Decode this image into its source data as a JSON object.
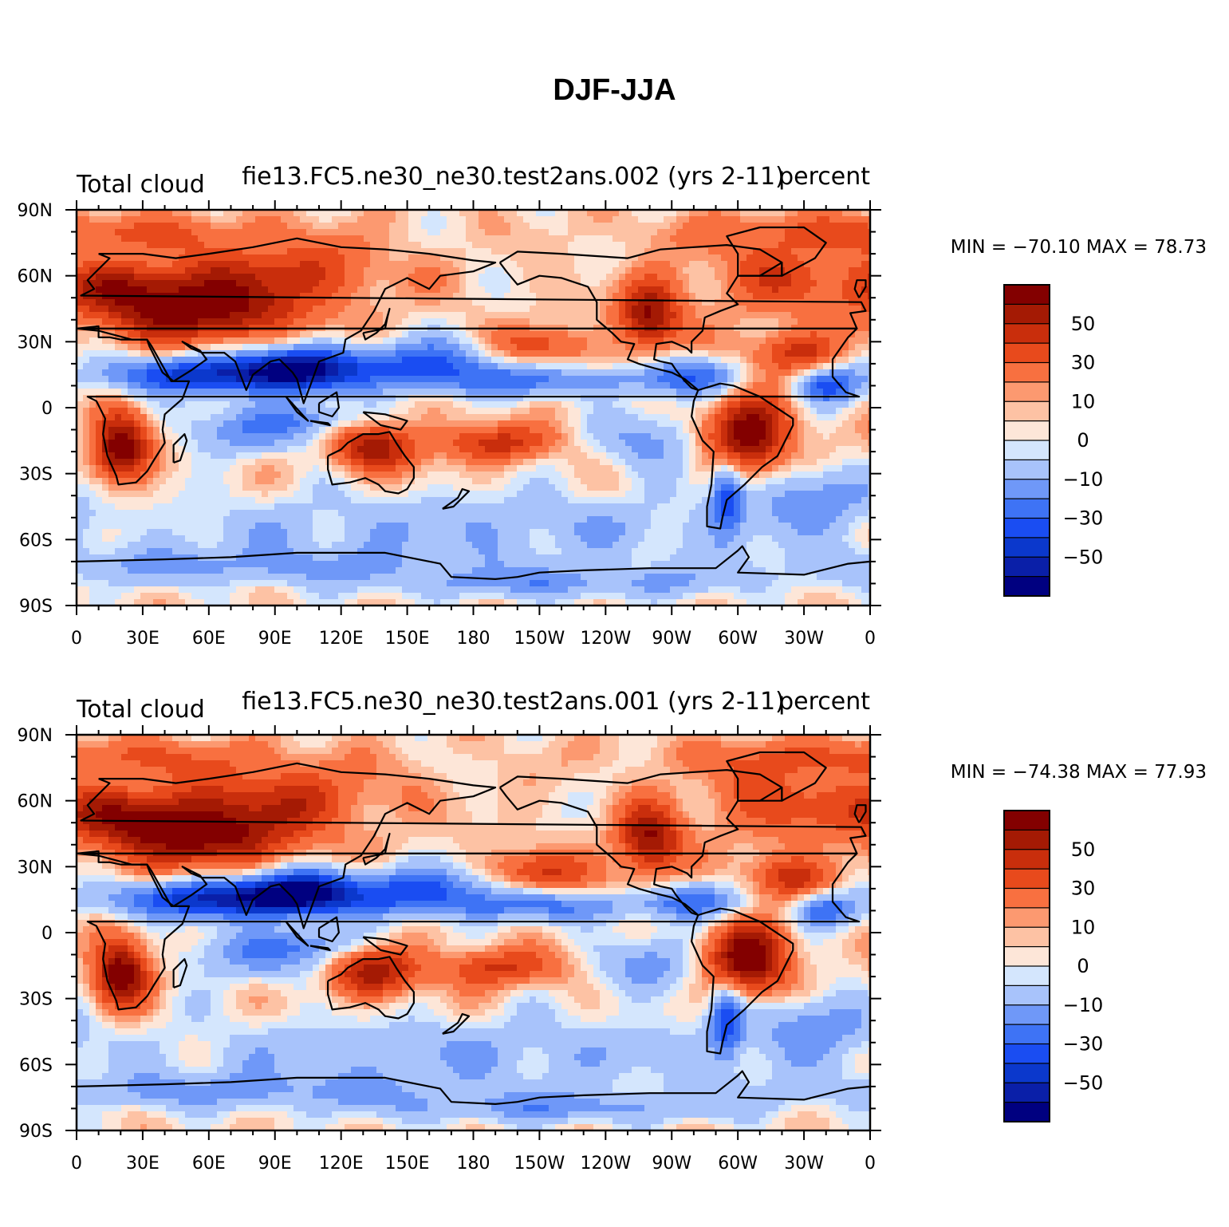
{
  "figure_title": "DJF-JJA",
  "colors": {
    "levels": [
      "#000080",
      "#0a1fa8",
      "#0b38cc",
      "#1a4df2",
      "#3e73f5",
      "#6f98f8",
      "#a8c3fb",
      "#d4e6fd",
      "#fde6d8",
      "#fdc2a4",
      "#fc9970",
      "#f87040",
      "#e84a1c",
      "#c92e0c",
      "#a41a04",
      "#830000"
    ],
    "coast": "#000000"
  },
  "chart_data": [
    {
      "type": "heatmap",
      "name": "panel-1",
      "left_title": "Total cloud",
      "center_title": "fie13.FC5.ne30_ne30.test2ans.002 (yrs 2-11)",
      "right_title": "percent",
      "min_max_text": "MIN = −70.10 MAX =   78.73",
      "min": -70.1,
      "max": 78.73,
      "x_ticks": [
        "0",
        "30E",
        "60E",
        "90E",
        "120E",
        "150E",
        "180",
        "150W",
        "120W",
        "90W",
        "60W",
        "30W",
        "0"
      ],
      "y_ticks": [
        "90N",
        "60N",
        "30N",
        "0",
        "30S",
        "60S",
        "90S"
      ],
      "colorbar_labels": [
        "50",
        "30",
        "10",
        "0",
        "−10",
        "−30",
        "−50"
      ],
      "contour_levels": [
        -70,
        -60,
        -50,
        -40,
        -30,
        -20,
        -10,
        -5,
        0,
        5,
        10,
        20,
        30,
        40,
        50,
        60,
        70
      ]
    },
    {
      "type": "heatmap",
      "name": "panel-2",
      "left_title": "Total cloud",
      "center_title": "fie13.FC5.ne30_ne30.test2ans.001 (yrs 2-11)",
      "right_title": "percent",
      "min_max_text": "MIN = −74.38 MAX =   77.93",
      "min": -74.38,
      "max": 77.93,
      "x_ticks": [
        "0",
        "30E",
        "60E",
        "90E",
        "120E",
        "150E",
        "180",
        "150W",
        "120W",
        "90W",
        "60W",
        "30W",
        "0"
      ],
      "y_ticks": [
        "90N",
        "60N",
        "30N",
        "0",
        "30S",
        "60S",
        "90S"
      ],
      "colorbar_labels": [
        "50",
        "30",
        "10",
        "0",
        "−10",
        "−30",
        "−50"
      ],
      "contour_levels": [
        -70,
        -60,
        -50,
        -40,
        -30,
        -20,
        -10,
        -5,
        0,
        5,
        10,
        20,
        30,
        40,
        50,
        60,
        70
      ]
    }
  ]
}
